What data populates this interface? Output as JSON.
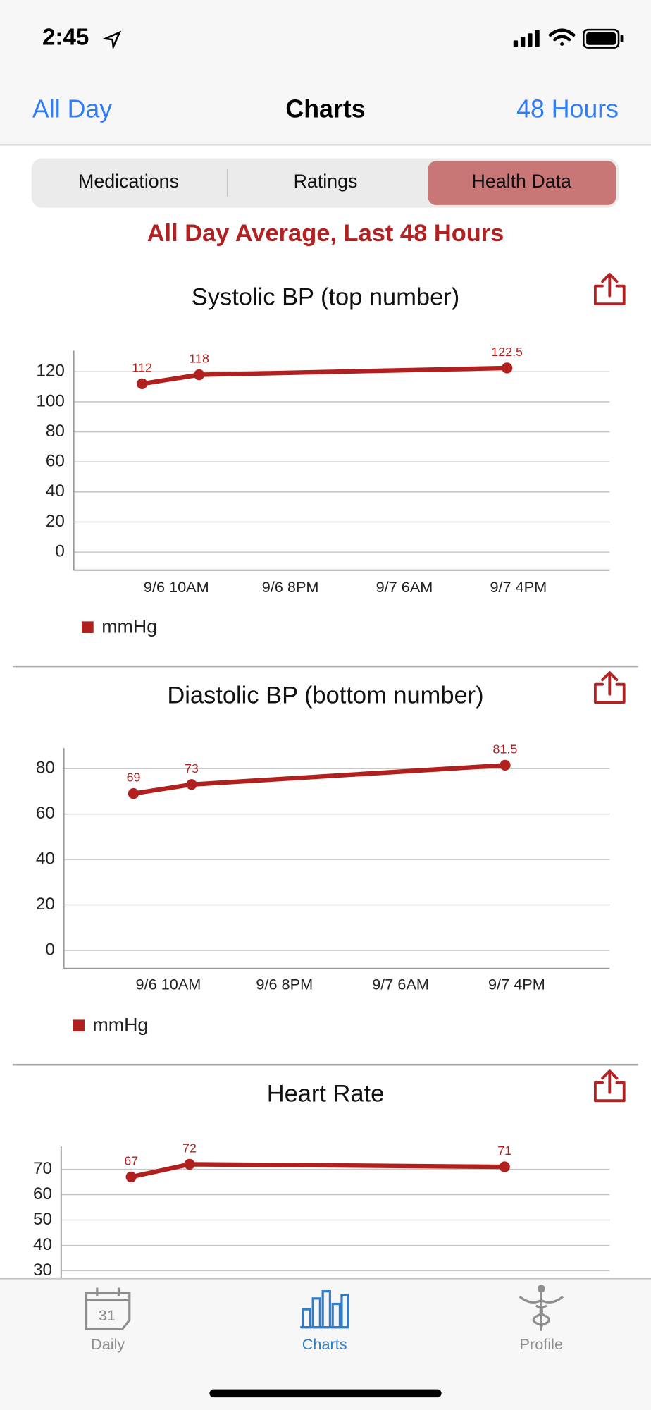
{
  "status_bar": {
    "time": "2:45"
  },
  "nav": {
    "left": "All Day",
    "title": "Charts",
    "right": "48 Hours"
  },
  "segments": [
    "Medications",
    "Ratings",
    "Health Data"
  ],
  "subtitle": "All Day Average, Last 48 Hours",
  "chart_data": [
    {
      "type": "line",
      "title": "Systolic BP (top number)",
      "x": [
        7,
        12,
        39
      ],
      "xlim": [
        1,
        48
      ],
      "xticks": [
        {
          "value": 10,
          "label": "9/6 10AM"
        },
        {
          "value": 20,
          "label": "9/6 8PM"
        },
        {
          "value": 30,
          "label": "9/7 6AM"
        },
        {
          "value": 40,
          "label": "9/7 4PM"
        }
      ],
      "ylim": [
        -12,
        134
      ],
      "yticks": [
        0,
        20,
        40,
        60,
        80,
        100,
        120
      ],
      "grid": true,
      "series": [
        {
          "name": "mmHg",
          "color": "#b0201e",
          "values": [
            112,
            118,
            122.5
          ]
        }
      ]
    },
    {
      "type": "line",
      "title": "Diastolic BP (bottom number)",
      "x": [
        7,
        12,
        39
      ],
      "xlim": [
        1,
        48
      ],
      "xticks": [
        {
          "value": 10,
          "label": "9/6 10AM"
        },
        {
          "value": 20,
          "label": "9/6 8PM"
        },
        {
          "value": 30,
          "label": "9/7 6AM"
        },
        {
          "value": 40,
          "label": "9/7 4PM"
        }
      ],
      "ylim": [
        -8,
        89
      ],
      "yticks": [
        0,
        20,
        40,
        60,
        80
      ],
      "grid": true,
      "series": [
        {
          "name": "mmHg",
          "color": "#b0201e",
          "values": [
            69,
            73,
            81.5
          ]
        }
      ]
    },
    {
      "type": "line",
      "title": "Heart Rate",
      "x": [
        7,
        12,
        39
      ],
      "xlim": [
        1,
        48
      ],
      "ylim": [
        24,
        79
      ],
      "yticks": [
        30,
        40,
        50,
        60,
        70
      ],
      "grid": true,
      "series": [
        {
          "color": "#b0201e",
          "values": [
            67,
            72,
            71
          ]
        }
      ]
    }
  ],
  "tab_bar": {
    "items": [
      {
        "label": "Daily",
        "icon_text": "31"
      },
      {
        "label": "Charts"
      },
      {
        "label": "Profile"
      }
    ]
  }
}
